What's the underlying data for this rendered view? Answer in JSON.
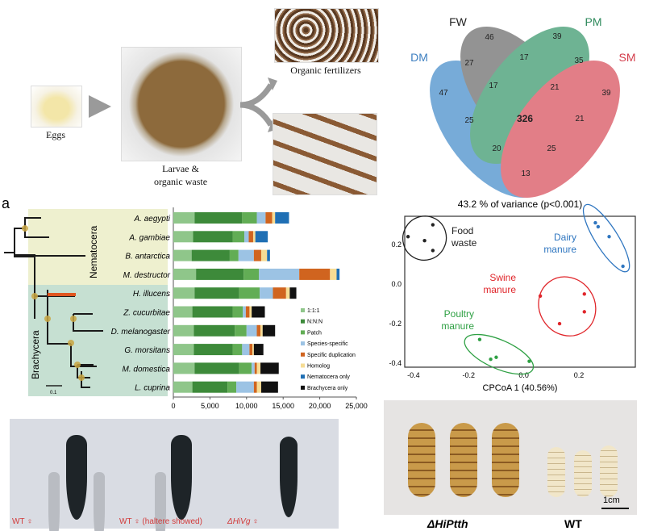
{
  "workflow": {
    "eggs": "Eggs",
    "larvae_line1": "Larvae &",
    "larvae_line2": "organic waste",
    "fertilizer": "Organic fertilizers"
  },
  "panel_label": "a",
  "tree": {
    "clade_nematocera": "Nematocera",
    "clade_brachycera": "Brachycera",
    "scale": "0.1"
  },
  "venn": {
    "sets": [
      "DM",
      "FW",
      "PM",
      "SM"
    ],
    "colors": {
      "DM": "#4a8fcb",
      "FW": "#6f6f6f",
      "PM": "#3e9a70",
      "SM": "#d9535f"
    },
    "regions": {
      "FW_only": "46",
      "PM_only": "39",
      "DM_FW": "27",
      "FW_PM": "17",
      "PM_SM": "35",
      "DM_only": "47",
      "DM_FW_PM": "17",
      "FW_PM_SM": "21",
      "SM_only": "39",
      "DM_PM": "25",
      "all": "326",
      "FW_SM": "21",
      "DM_PM_SM": "20",
      "DM_FW_SM": "25",
      "DM_SM": "13"
    }
  },
  "chart_data": [
    {
      "type": "bar",
      "orientation": "horizontal",
      "stacked": true,
      "categories": [
        "A. aegypti",
        "A. gambiae",
        "B. antarctica",
        "M. destructor",
        "H. illucens",
        "Z. cucurbitae",
        "D. melanogaster",
        "G. morsitans",
        "M. domestica",
        "L. cuprina"
      ],
      "xlim": [
        0,
        25000
      ],
      "xticks": [
        "0",
        "5,000",
        "10,000",
        "15,000",
        "20,000",
        "25,000"
      ],
      "legend_position": "bottom-right",
      "series": [
        {
          "name": "1:1:1",
          "color": "#8fc68a",
          "values": [
            2900,
            2700,
            2500,
            3100,
            2900,
            2600,
            2800,
            2800,
            2900,
            2600
          ]
        },
        {
          "name": "N:N:N",
          "color": "#3d8a3a",
          "values": [
            6500,
            5400,
            5200,
            6500,
            6100,
            5500,
            5600,
            5300,
            6100,
            4800
          ]
        },
        {
          "name": "Patch",
          "color": "#62ad55",
          "values": [
            2000,
            1600,
            1200,
            2100,
            2800,
            1400,
            1600,
            1300,
            1700,
            1200
          ]
        },
        {
          "name": "Species-specific",
          "color": "#9cc3e4",
          "values": [
            1200,
            600,
            2100,
            5500,
            1800,
            400,
            1400,
            1000,
            400,
            2400
          ]
        },
        {
          "name": "Specific duplication",
          "color": "#d0641f",
          "values": [
            900,
            600,
            1000,
            4200,
            1800,
            500,
            500,
            400,
            300,
            400
          ]
        },
        {
          "name": "Homolog",
          "color": "#f6dc94",
          "values": [
            400,
            300,
            800,
            900,
            500,
            300,
            300,
            200,
            500,
            600
          ]
        },
        {
          "name": "Nematocera only",
          "color": "#1f6fb4",
          "values": [
            1900,
            1700,
            400,
            400,
            0,
            0,
            0,
            0,
            0,
            0
          ]
        },
        {
          "name": "Brachycera only",
          "color": "#111111",
          "values": [
            0,
            0,
            0,
            0,
            900,
            1800,
            1700,
            1300,
            2500,
            2300
          ]
        }
      ]
    },
    {
      "type": "scatter",
      "title": "43.2 % of variance (p<0.001)",
      "xlabel": "CPCoA 1 (40.56%)",
      "ylabel": "",
      "xlim": [
        -0.432,
        0.405
      ],
      "ylim": [
        -0.42,
        0.343
      ],
      "xticks": [
        -0.4,
        -0.2,
        0.0,
        0.2
      ],
      "yticks": [
        0.2,
        0.0,
        -0.2,
        -0.4
      ],
      "groups": [
        {
          "name": "Food waste",
          "label": [
            "Food",
            "waste"
          ],
          "color": "#222222",
          "points": [
            [
              -0.42,
              0.24
            ],
            [
              -0.36,
              0.22
            ],
            [
              -0.33,
              0.3
            ],
            [
              -0.33,
              0.17
            ]
          ]
        },
        {
          "name": "Dairy manure",
          "label": [
            "Dairy",
            "manure"
          ],
          "color": "#2f76c0",
          "points": [
            [
              0.26,
              0.31
            ],
            [
              0.27,
              0.29
            ],
            [
              0.31,
              0.24
            ],
            [
              0.36,
              0.09
            ]
          ]
        },
        {
          "name": "Swine manure",
          "label": [
            "Swine",
            "manure"
          ],
          "color": "#e0262b",
          "points": [
            [
              0.06,
              -0.06
            ],
            [
              0.22,
              -0.05
            ],
            [
              0.22,
              -0.14
            ],
            [
              0.13,
              -0.2
            ]
          ]
        },
        {
          "name": "Poultry manure",
          "label": [
            "Poultry",
            "manure"
          ],
          "color": "#2ea043",
          "points": [
            [
              -0.16,
              -0.28
            ],
            [
              -0.12,
              -0.38
            ],
            [
              -0.1,
              -0.37
            ],
            [
              0.02,
              -0.39
            ]
          ]
        }
      ]
    }
  ],
  "flies": {
    "wt": "WT ♀",
    "wt_haltere": "WT ♀ (haltere showed)",
    "mutant": "ΔHiVg ♀"
  },
  "larvae": {
    "mutant": "ΔHiPtth",
    "wt": "WT",
    "scale": "1cm"
  }
}
